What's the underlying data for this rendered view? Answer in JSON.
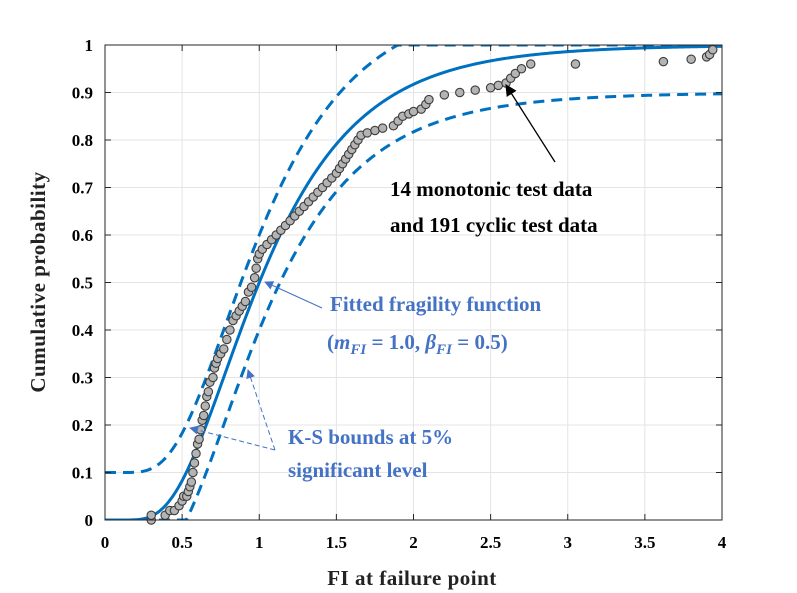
{
  "chart_data": {
    "type": "line",
    "xlabel": "FI at failure point",
    "ylabel": "Cumulative probability",
    "xlim": [
      0,
      4
    ],
    "ylim": [
      0,
      1
    ],
    "x_ticks": [
      0,
      0.5,
      1,
      1.5,
      2,
      2.5,
      3,
      3.5,
      4
    ],
    "x_tick_labels": [
      "0",
      "0.5",
      "1",
      "1.5",
      "2",
      "2.5",
      "3",
      "3.5",
      "4"
    ],
    "y_ticks": [
      0,
      0.1,
      0.2,
      0.3,
      0.4,
      0.5,
      0.6,
      0.7,
      0.8,
      0.9,
      1
    ],
    "y_tick_labels": [
      "0",
      "0.1",
      "0.2",
      "0.3",
      "0.4",
      "0.5",
      "0.6",
      "0.7",
      "0.8",
      "0.9",
      "1"
    ],
    "grid": true,
    "fitted_function": {
      "distribution": "lognormal",
      "m": 1.0,
      "beta": 0.5
    },
    "ks_bound_offset": 0.1,
    "empirical_points": [
      [
        0.3,
        0.0
      ],
      [
        0.3,
        0.01
      ],
      [
        0.39,
        0.01
      ],
      [
        0.42,
        0.02
      ],
      [
        0.45,
        0.02
      ],
      [
        0.48,
        0.03
      ],
      [
        0.5,
        0.04
      ],
      [
        0.51,
        0.05
      ],
      [
        0.53,
        0.05
      ],
      [
        0.54,
        0.06
      ],
      [
        0.55,
        0.07
      ],
      [
        0.56,
        0.08
      ],
      [
        0.57,
        0.1
      ],
      [
        0.58,
        0.12
      ],
      [
        0.59,
        0.14
      ],
      [
        0.6,
        0.16
      ],
      [
        0.61,
        0.17
      ],
      [
        0.62,
        0.19
      ],
      [
        0.63,
        0.21
      ],
      [
        0.64,
        0.22
      ],
      [
        0.65,
        0.24
      ],
      [
        0.66,
        0.26
      ],
      [
        0.67,
        0.27
      ],
      [
        0.68,
        0.29
      ],
      [
        0.7,
        0.3
      ],
      [
        0.71,
        0.32
      ],
      [
        0.72,
        0.33
      ],
      [
        0.73,
        0.34
      ],
      [
        0.75,
        0.35
      ],
      [
        0.77,
        0.36
      ],
      [
        0.79,
        0.38
      ],
      [
        0.81,
        0.4
      ],
      [
        0.83,
        0.42
      ],
      [
        0.85,
        0.43
      ],
      [
        0.87,
        0.44
      ],
      [
        0.89,
        0.45
      ],
      [
        0.91,
        0.46
      ],
      [
        0.93,
        0.48
      ],
      [
        0.95,
        0.49
      ],
      [
        0.97,
        0.51
      ],
      [
        0.98,
        0.53
      ],
      [
        0.99,
        0.55
      ],
      [
        1.0,
        0.56
      ],
      [
        1.02,
        0.57
      ],
      [
        1.05,
        0.58
      ],
      [
        1.08,
        0.59
      ],
      [
        1.11,
        0.6
      ],
      [
        1.14,
        0.61
      ],
      [
        1.17,
        0.62
      ],
      [
        1.2,
        0.63
      ],
      [
        1.23,
        0.64
      ],
      [
        1.26,
        0.65
      ],
      [
        1.29,
        0.66
      ],
      [
        1.32,
        0.67
      ],
      [
        1.35,
        0.68
      ],
      [
        1.38,
        0.69
      ],
      [
        1.41,
        0.7
      ],
      [
        1.44,
        0.71
      ],
      [
        1.47,
        0.72
      ],
      [
        1.5,
        0.73
      ],
      [
        1.52,
        0.74
      ],
      [
        1.54,
        0.75
      ],
      [
        1.56,
        0.76
      ],
      [
        1.58,
        0.77
      ],
      [
        1.6,
        0.78
      ],
      [
        1.62,
        0.79
      ],
      [
        1.64,
        0.8
      ],
      [
        1.66,
        0.81
      ],
      [
        1.7,
        0.815
      ],
      [
        1.75,
        0.82
      ],
      [
        1.8,
        0.825
      ],
      [
        1.87,
        0.83
      ],
      [
        1.9,
        0.84
      ],
      [
        1.93,
        0.85
      ],
      [
        1.97,
        0.855
      ],
      [
        2.0,
        0.86
      ],
      [
        2.05,
        0.865
      ],
      [
        2.08,
        0.875
      ],
      [
        2.1,
        0.885
      ],
      [
        2.2,
        0.895
      ],
      [
        2.3,
        0.9
      ],
      [
        2.4,
        0.905
      ],
      [
        2.5,
        0.91
      ],
      [
        2.55,
        0.915
      ],
      [
        2.6,
        0.92
      ],
      [
        2.63,
        0.93
      ],
      [
        2.66,
        0.94
      ],
      [
        2.7,
        0.95
      ],
      [
        2.76,
        0.96
      ],
      [
        3.05,
        0.96
      ],
      [
        3.62,
        0.965
      ],
      [
        3.8,
        0.97
      ],
      [
        3.9,
        0.975
      ],
      [
        3.92,
        0.98
      ],
      [
        3.94,
        0.99
      ]
    ],
    "annotations": {
      "data_label_line1": "14 monotonic test data",
      "data_label_line2": "and 191 cyclic test data",
      "fit_label_line1": "Fitted fragility function",
      "fit_open": "(",
      "fit_m_sym": "m",
      "fit_m_sub": "FI",
      "fit_m_val": " = 1.0, ",
      "fit_b_sym": "β",
      "fit_b_sub": "FI",
      "fit_b_val": " = 0.5)",
      "ks_label_line1": "K-S bounds at 5%",
      "ks_label_line2": "significant level"
    },
    "colors": {
      "fit_line": "#0070c0",
      "bound_line": "#0070c0",
      "marker_fill": "#b4b4b4",
      "marker_edge": "#3c3c3c",
      "annotation_blue": "#4472c4",
      "grid": "#e4e4e4"
    }
  }
}
